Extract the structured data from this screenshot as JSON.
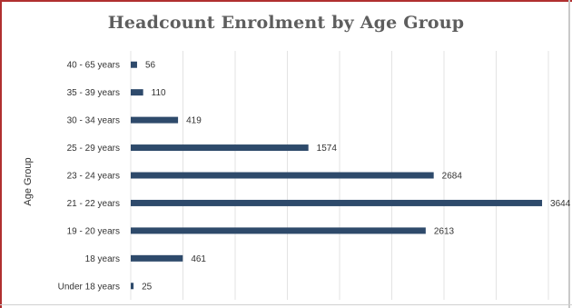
{
  "chart_data": {
    "type": "bar",
    "orientation": "horizontal",
    "title": "Headcount Enrolment by Age Group",
    "ylabel": "Age Group",
    "xlabel": "",
    "categories": [
      "40 - 65 years",
      "35 - 39 years",
      "30 - 34 years",
      "25 - 29 years",
      "23 - 24 years",
      "21 - 22 years",
      "19 - 20 years",
      "18 years",
      "Under 18 years"
    ],
    "values": [
      56,
      110,
      419,
      1574,
      2684,
      3644,
      2613,
      461,
      25
    ],
    "xlim": [
      0,
      3700
    ],
    "grid": true,
    "legend": "none",
    "colors": {
      "bar": "#2e4a6b",
      "grid": "#e3e3e3",
      "frame_accent": "#b03030"
    }
  }
}
